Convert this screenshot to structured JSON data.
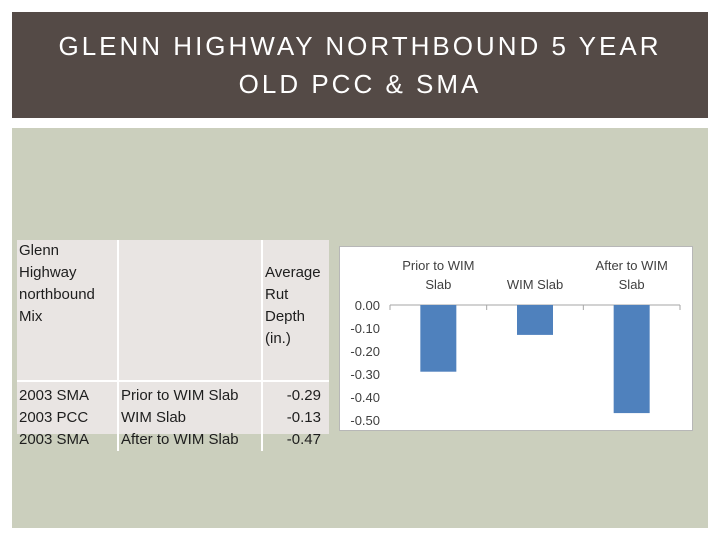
{
  "slide": {
    "title": "GLENN HIGHWAY NORTHBOUND 5 YEAR\nOLD PCC & SMA"
  },
  "table": {
    "header": {
      "col1": "Glenn Highway northbound\nMix",
      "col2": "",
      "col3": "Average\nRut\nDepth\n(in.)"
    },
    "rows": [
      {
        "mix": "2003 SMA",
        "location": "Prior to WIM Slab",
        "rut": "-0.29"
      },
      {
        "mix": "2003 PCC",
        "location": "WIM Slab",
        "rut": "-0.13"
      },
      {
        "mix": "2003 SMA",
        "location": "After to WIM Slab",
        "rut": "-0.47"
      }
    ]
  },
  "chart_data": {
    "type": "bar",
    "categories": [
      "Prior to WIM Slab",
      "WIM Slab",
      "After to WIM Slab"
    ],
    "category_labels": [
      [
        "Prior to WIM",
        "Slab"
      ],
      [
        "WIM Slab"
      ],
      [
        "After to WIM",
        "Slab"
      ]
    ],
    "values": [
      -0.29,
      -0.13,
      -0.47
    ],
    "ylim": [
      -0.5,
      0.0
    ],
    "yticks": [
      0.0,
      -0.1,
      -0.2,
      -0.3,
      -0.4,
      -0.5
    ],
    "ytick_labels": [
      "0.00",
      "-0.10",
      "-0.20",
      "-0.30",
      "-0.40",
      "-0.50"
    ],
    "xaxis_position": "top",
    "grid": false,
    "legend": "none",
    "title": "",
    "xlabel": "",
    "ylabel": "",
    "bar_color": "#4f81bd"
  },
  "colors": {
    "title_bar": "#544a46",
    "content_bg": "#cbcfbd",
    "table_bg": "#e9e5e3"
  }
}
